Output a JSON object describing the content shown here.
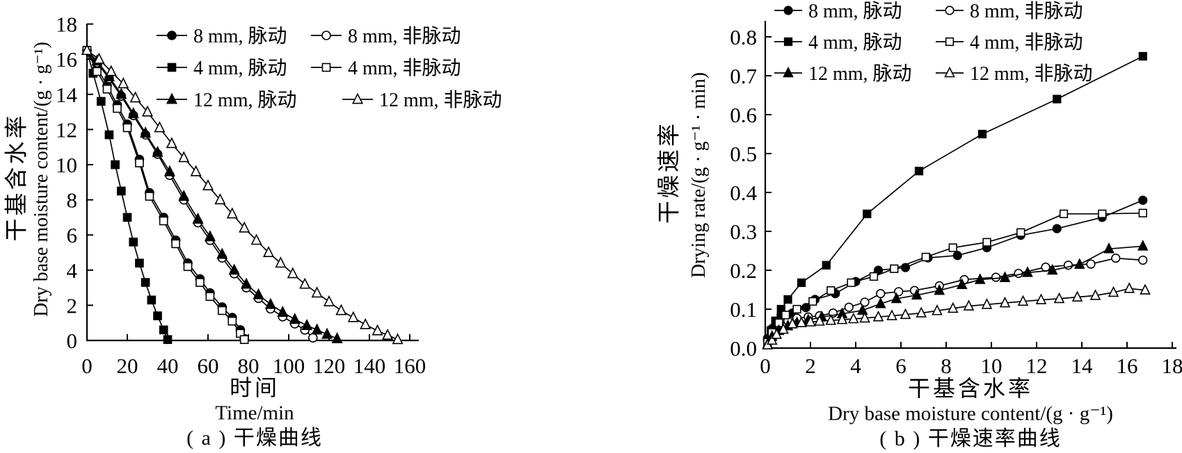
{
  "page": {
    "background_color": "#ffffff",
    "ink_color": "#000000",
    "figure_width": 1699,
    "figure_height": 652
  },
  "chart_data": [
    {
      "id": "a",
      "type": "line",
      "caption": "( a ) 干燥曲线",
      "grid": false,
      "legend_position": "upper-right-inside, 2 columns",
      "x_axis": {
        "label_cn": "时间",
        "label_en": "Time/min",
        "min": 0,
        "max": 164,
        "ticks": [
          0,
          20,
          40,
          60,
          80,
          100,
          120,
          140,
          160
        ],
        "decimals": 0
      },
      "y_axis": {
        "label_cn": "干基含水率",
        "label_en": "Dry base moisture content/(g · g⁻¹)",
        "min": 0,
        "max": 18,
        "ticks": [
          0,
          2,
          4,
          6,
          8,
          10,
          12,
          14,
          16,
          18
        ],
        "decimals": 0
      },
      "series": [
        {
          "name": "8 mm, 脉动",
          "marker": "circle",
          "fill": "filled",
          "points": [
            [
              0,
              16.5
            ],
            [
              5,
              15.5
            ],
            [
              10,
              14.5
            ],
            [
              15,
              13.4
            ],
            [
              20,
              12.3
            ],
            [
              26,
              10.3
            ],
            [
              31,
              8.4
            ],
            [
              38,
              7.0
            ],
            [
              44,
              5.7
            ],
            [
              50,
              4.4
            ],
            [
              56,
              3.5
            ],
            [
              61,
              2.7
            ],
            [
              67,
              1.9
            ],
            [
              72,
              1.3
            ],
            [
              76,
              0.6
            ],
            [
              78,
              0.1
            ]
          ]
        },
        {
          "name": "8 mm, 非脉动",
          "marker": "circle",
          "fill": "open",
          "points": [
            [
              0,
              16.5
            ],
            [
              5,
              15.8
            ],
            [
              11,
              14.9
            ],
            [
              17,
              13.9
            ],
            [
              23,
              12.8
            ],
            [
              29,
              11.7
            ],
            [
              35,
              10.6
            ],
            [
              41,
              9.4
            ],
            [
              48,
              8.0
            ],
            [
              55,
              6.7
            ],
            [
              61,
              5.7
            ],
            [
              67,
              4.7
            ],
            [
              73,
              3.8
            ],
            [
              79,
              3.0
            ],
            [
              85,
              2.4
            ],
            [
              91,
              1.8
            ],
            [
              97,
              1.35
            ],
            [
              103,
              0.95
            ],
            [
              108,
              0.6
            ],
            [
              112,
              0.15
            ]
          ]
        },
        {
          "name": "4 mm, 脉动",
          "marker": "square",
          "fill": "filled",
          "points": [
            [
              0,
              16.5
            ],
            [
              3,
              15.2
            ],
            [
              7,
              13.6
            ],
            [
              11,
              11.7
            ],
            [
              14,
              10.0
            ],
            [
              17,
              8.5
            ],
            [
              20,
              7.0
            ],
            [
              23,
              5.6
            ],
            [
              26,
              4.4
            ],
            [
              29,
              3.3
            ],
            [
              32,
              2.3
            ],
            [
              35,
              1.4
            ],
            [
              38,
              0.6
            ],
            [
              40,
              0.05
            ]
          ]
        },
        {
          "name": "4 mm, 非脉动",
          "marker": "square",
          "fill": "open",
          "points": [
            [
              0,
              16.5
            ],
            [
              5,
              15.3
            ],
            [
              10,
              14.3
            ],
            [
              15,
              13.2
            ],
            [
              20,
              12.1
            ],
            [
              26,
              10.1
            ],
            [
              31,
              8.2
            ],
            [
              38,
              6.8
            ],
            [
              44,
              5.5
            ],
            [
              50,
              4.2
            ],
            [
              56,
              3.3
            ],
            [
              61,
              2.5
            ],
            [
              67,
              1.7
            ],
            [
              72,
              1.1
            ],
            [
              76,
              0.4
            ],
            [
              78,
              0.05
            ]
          ]
        },
        {
          "name": "12 mm, 脉动",
          "marker": "triangle",
          "fill": "filled",
          "points": [
            [
              0,
              16.5
            ],
            [
              5,
              15.9
            ],
            [
              11,
              15.0
            ],
            [
              17,
              14.0
            ],
            [
              23,
              12.9
            ],
            [
              29,
              11.8
            ],
            [
              35,
              10.7
            ],
            [
              41,
              9.6
            ],
            [
              48,
              8.2
            ],
            [
              55,
              6.9
            ],
            [
              61,
              5.9
            ],
            [
              67,
              4.9
            ],
            [
              73,
              4.0
            ],
            [
              79,
              3.2
            ],
            [
              85,
              2.6
            ],
            [
              91,
              2.05
            ],
            [
              97,
              1.6
            ],
            [
              103,
              1.2
            ],
            [
              109,
              0.85
            ],
            [
              114,
              0.6
            ],
            [
              119,
              0.35
            ],
            [
              124,
              0.1
            ]
          ]
        },
        {
          "name": "12 mm, 非脉动",
          "marker": "triangle",
          "fill": "open",
          "points": [
            [
              0,
              16.5
            ],
            [
              6,
              16.0
            ],
            [
              12,
              15.3
            ],
            [
              18,
              14.6
            ],
            [
              24,
              13.8
            ],
            [
              30,
              13.0
            ],
            [
              36,
              12.1
            ],
            [
              42,
              11.2
            ],
            [
              48,
              10.4
            ],
            [
              54,
              9.6
            ],
            [
              60,
              8.8
            ],
            [
              66,
              8.0
            ],
            [
              72,
              7.2
            ],
            [
              78,
              6.4
            ],
            [
              84,
              5.7
            ],
            [
              90,
              5.0
            ],
            [
              96,
              4.4
            ],
            [
              102,
              3.8
            ],
            [
              108,
              3.2
            ],
            [
              114,
              2.7
            ],
            [
              120,
              2.2
            ],
            [
              126,
              1.7
            ],
            [
              132,
              1.3
            ],
            [
              138,
              0.9
            ],
            [
              144,
              0.55
            ],
            [
              149,
              0.3
            ],
            [
              154,
              0.05
            ]
          ]
        }
      ]
    },
    {
      "id": "b",
      "type": "line",
      "caption": "( b ) 干燥速率曲线",
      "grid": false,
      "legend_position": "top, above and overlapping plot, 2 columns",
      "x_axis": {
        "label_cn": "干基含水率",
        "label_en": "Dry base moisture content/(g · g⁻¹)",
        "min": 0,
        "max": 18,
        "ticks": [
          0,
          2,
          4,
          6,
          8,
          10,
          12,
          14,
          16,
          18
        ],
        "decimals": 0
      },
      "y_axis": {
        "label_cn": "干燥速率",
        "label_en": "Drying rate/(g · g⁻¹ · min)",
        "min": 0,
        "max": 0.8,
        "ticks": [
          0,
          0.1,
          0.2,
          0.3,
          0.4,
          0.5,
          0.6,
          0.7,
          0.8
        ],
        "decimals": 1
      },
      "series": [
        {
          "name": "8 mm, 脉动",
          "marker": "circle",
          "fill": "filled",
          "points": [
            [
              0.1,
              0.025
            ],
            [
              0.3,
              0.05
            ],
            [
              0.7,
              0.085
            ],
            [
              1.2,
              0.09
            ],
            [
              1.8,
              0.104
            ],
            [
              2.2,
              0.125
            ],
            [
              3.1,
              0.14
            ],
            [
              4.0,
              0.171
            ],
            [
              5.0,
              0.2
            ],
            [
              6.2,
              0.207
            ],
            [
              7.2,
              0.232
            ],
            [
              8.5,
              0.238
            ],
            [
              9.8,
              0.258
            ],
            [
              11.3,
              0.29
            ],
            [
              12.9,
              0.307
            ],
            [
              14.9,
              0.336
            ],
            [
              16.7,
              0.38
            ]
          ]
        },
        {
          "name": "8 mm, 非脉动",
          "marker": "circle",
          "fill": "open",
          "points": [
            [
              0.1,
              0.02
            ],
            [
              0.3,
              0.045
            ],
            [
              0.6,
              0.06
            ],
            [
              1.0,
              0.07
            ],
            [
              1.4,
              0.077
            ],
            [
              1.9,
              0.08
            ],
            [
              2.4,
              0.083
            ],
            [
              3.0,
              0.09
            ],
            [
              3.7,
              0.105
            ],
            [
              4.4,
              0.118
            ],
            [
              5.1,
              0.14
            ],
            [
              5.9,
              0.145
            ],
            [
              6.6,
              0.148
            ],
            [
              7.7,
              0.16
            ],
            [
              8.8,
              0.176
            ],
            [
              10.2,
              0.182
            ],
            [
              11.2,
              0.192
            ],
            [
              12.4,
              0.208
            ],
            [
              13.4,
              0.213
            ],
            [
              14.4,
              0.216
            ],
            [
              15.5,
              0.231
            ],
            [
              16.7,
              0.226
            ]
          ]
        },
        {
          "name": "4 mm, 脉动",
          "marker": "square",
          "fill": "filled",
          "points": [
            [
              0.1,
              0.02
            ],
            [
              0.25,
              0.045
            ],
            [
              0.45,
              0.07
            ],
            [
              0.7,
              0.1
            ],
            [
              1.0,
              0.125
            ],
            [
              1.6,
              0.168
            ],
            [
              2.7,
              0.213
            ],
            [
              4.5,
              0.345
            ],
            [
              6.8,
              0.455
            ],
            [
              9.6,
              0.55
            ],
            [
              12.9,
              0.64
            ],
            [
              16.7,
              0.75
            ]
          ]
        },
        {
          "name": "4 mm, 非脉动",
          "marker": "square",
          "fill": "open",
          "points": [
            [
              0.1,
              0.015
            ],
            [
              0.3,
              0.04
            ],
            [
              0.6,
              0.065
            ],
            [
              0.9,
              0.085
            ],
            [
              1.4,
              0.1
            ],
            [
              2.1,
              0.12
            ],
            [
              2.9,
              0.148
            ],
            [
              3.8,
              0.168
            ],
            [
              4.8,
              0.184
            ],
            [
              5.7,
              0.204
            ],
            [
              7.1,
              0.234
            ],
            [
              8.3,
              0.258
            ],
            [
              9.8,
              0.272
            ],
            [
              11.3,
              0.297
            ],
            [
              13.2,
              0.345
            ],
            [
              14.9,
              0.345
            ],
            [
              16.7,
              0.347
            ]
          ]
        },
        {
          "name": "12 mm, 脉动",
          "marker": "triangle",
          "fill": "filled",
          "points": [
            [
              0.1,
              0.01
            ],
            [
              0.3,
              0.03
            ],
            [
              0.6,
              0.045
            ],
            [
              1.0,
              0.057
            ],
            [
              1.4,
              0.065
            ],
            [
              1.9,
              0.072
            ],
            [
              2.5,
              0.08
            ],
            [
              3.4,
              0.088
            ],
            [
              4.3,
              0.097
            ],
            [
              5.1,
              0.114
            ],
            [
              5.8,
              0.127
            ],
            [
              6.7,
              0.136
            ],
            [
              7.7,
              0.148
            ],
            [
              8.7,
              0.163
            ],
            [
              9.5,
              0.176
            ],
            [
              10.6,
              0.181
            ],
            [
              11.6,
              0.194
            ],
            [
              12.7,
              0.2
            ],
            [
              13.9,
              0.215
            ],
            [
              15.2,
              0.255
            ],
            [
              16.7,
              0.262
            ]
          ]
        },
        {
          "name": "12 mm, 非脉动",
          "marker": "triangle",
          "fill": "open",
          "points": [
            [
              0.1,
              0.008
            ],
            [
              0.3,
              0.02
            ],
            [
              0.5,
              0.035
            ],
            [
              0.8,
              0.048
            ],
            [
              1.2,
              0.062
            ],
            [
              1.6,
              0.065
            ],
            [
              2.0,
              0.067
            ],
            [
              2.4,
              0.069
            ],
            [
              2.9,
              0.071
            ],
            [
              3.4,
              0.073
            ],
            [
              3.9,
              0.075
            ],
            [
              4.4,
              0.077
            ],
            [
              5.0,
              0.08
            ],
            [
              5.6,
              0.083
            ],
            [
              6.2,
              0.086
            ],
            [
              6.9,
              0.09
            ],
            [
              7.6,
              0.096
            ],
            [
              8.3,
              0.102
            ],
            [
              9.0,
              0.108
            ],
            [
              9.8,
              0.112
            ],
            [
              10.6,
              0.116
            ],
            [
              11.4,
              0.12
            ],
            [
              12.2,
              0.124
            ],
            [
              13.0,
              0.127
            ],
            [
              13.8,
              0.131
            ],
            [
              14.6,
              0.135
            ],
            [
              15.4,
              0.143
            ],
            [
              16.1,
              0.153
            ],
            [
              16.8,
              0.149
            ]
          ]
        }
      ]
    }
  ]
}
